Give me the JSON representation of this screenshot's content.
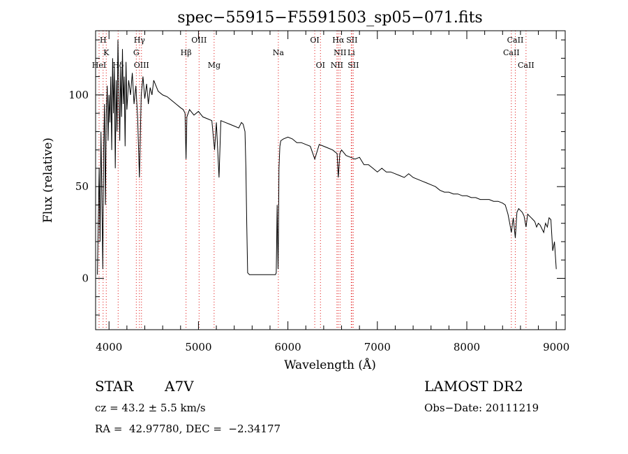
{
  "chart_data": {
    "type": "line",
    "title": "spec−55915−F5591503_sp05−071.fits",
    "xlabel": "Wavelength (Å)",
    "ylabel": "Flux (relative)",
    "xlim": [
      3850,
      9100
    ],
    "ylim": [
      -28,
      135
    ],
    "xticks": [
      4000,
      5000,
      6000,
      7000,
      8000,
      9000
    ],
    "yticks": [
      0,
      50,
      100
    ],
    "grid": false,
    "line_color": "#000000",
    "marker_color": "#e01010",
    "series": [
      {
        "x": [
          3870,
          3880,
          3890,
          3900,
          3910,
          3920,
          3930,
          3940,
          3950,
          3960,
          3970,
          3980,
          3990,
          4000,
          4010,
          4020,
          4030,
          4040,
          4050,
          4060,
          4070,
          4080,
          4090,
          4100,
          4110,
          4120,
          4130,
          4140,
          4150,
          4160,
          4170,
          4180,
          4190,
          4200,
          4220,
          4240,
          4260,
          4280,
          4300,
          4320,
          4340,
          4360,
          4380,
          4400,
          4420,
          4440,
          4460,
          4480,
          4500,
          4550,
          4600,
          4650,
          4700,
          4750,
          4800,
          4830,
          4850,
          4861,
          4870,
          4900,
          4950,
          5000,
          5050,
          5100,
          5150,
          5180,
          5200,
          5230,
          5250,
          5300,
          5350,
          5400,
          5450,
          5480,
          5500,
          5520,
          5530,
          5540,
          5550,
          5570,
          5600,
          5650,
          5700,
          5750,
          5800,
          5840,
          5860,
          5870,
          5880,
          5885,
          5890,
          5895,
          5900,
          5910,
          5920,
          5950,
          6000,
          6050,
          6100,
          6150,
          6200,
          6250,
          6300,
          6350,
          6400,
          6450,
          6500,
          6550,
          6563,
          6580,
          6600,
          6650,
          6700,
          6750,
          6800,
          6850,
          6900,
          6950,
          7000,
          7050,
          7100,
          7150,
          7200,
          7250,
          7300,
          7350,
          7400,
          7450,
          7500,
          7550,
          7600,
          7650,
          7700,
          7750,
          7800,
          7850,
          7900,
          7950,
          8000,
          8050,
          8100,
          8150,
          8200,
          8250,
          8300,
          8350,
          8400,
          8430,
          8460,
          8480,
          8498,
          8520,
          8542,
          8560,
          8580,
          8600,
          8620,
          8640,
          8662,
          8680,
          8700,
          8720,
          8740,
          8760,
          8780,
          8800,
          8820,
          8840,
          8860,
          8880,
          8900,
          8920,
          8940,
          8960,
          8980,
          9000
        ],
        "y": [
          2,
          30,
          60,
          20,
          80,
          45,
          5,
          70,
          95,
          40,
          90,
          105,
          75,
          100,
          85,
          110,
          70,
          120,
          90,
          115,
          60,
          108,
          80,
          130,
          102,
          75,
          115,
          88,
          125,
          95,
          110,
          72,
          118,
          92,
          108,
          100,
          112,
          95,
          105,
          88,
          55,
          100,
          110,
          98,
          106,
          95,
          104,
          100,
          108,
          102,
          100,
          99,
          97,
          95,
          93,
          92,
          90,
          65,
          88,
          92,
          89,
          91,
          88,
          87,
          86,
          70,
          85,
          55,
          86,
          85,
          84,
          83,
          82,
          85,
          84,
          80,
          60,
          30,
          3,
          2,
          2,
          2,
          2,
          2,
          2,
          2,
          2,
          3,
          40,
          20,
          5,
          25,
          60,
          72,
          75,
          76,
          77,
          76,
          74,
          74,
          73,
          72,
          65,
          73,
          72,
          71,
          70,
          68,
          55,
          68,
          70,
          67,
          66,
          65,
          66,
          62,
          62,
          60,
          58,
          60,
          58,
          58,
          57,
          56,
          55,
          57,
          55,
          54,
          53,
          52,
          51,
          50,
          48,
          47,
          47,
          46,
          46,
          45,
          45,
          44,
          44,
          43,
          43,
          43,
          42,
          42,
          41,
          40,
          35,
          30,
          25,
          33,
          22,
          36,
          38,
          37,
          36,
          34,
          28,
          35,
          34,
          33,
          32,
          31,
          28,
          30,
          29,
          27,
          25,
          30,
          28,
          33,
          32,
          15,
          20,
          5
        ]
      }
    ],
    "lines": [
      {
        "label": "H",
        "w": 3934,
        "row": 0
      },
      {
        "label": "K",
        "w": 3969,
        "row": 1
      },
      {
        "label": "HeI",
        "w": 3889,
        "row": 2
      },
      {
        "label": "Hδ",
        "w": 4102,
        "row": 2
      },
      {
        "label": "Hγ",
        "w": 4340,
        "row": 0
      },
      {
        "label": "G",
        "w": 4305,
        "row": 1
      },
      {
        "label": "OIII",
        "w": 4363,
        "row": 2
      },
      {
        "label": "OIII",
        "w": 5007,
        "row": 0
      },
      {
        "label": "Hβ",
        "w": 4861,
        "row": 1
      },
      {
        "label": "Mg",
        "w": 5175,
        "row": 2
      },
      {
        "label": "Na",
        "w": 5893,
        "row": 1
      },
      {
        "label": "OI",
        "w": 6300,
        "row": 0
      },
      {
        "label": "OI",
        "w": 6364,
        "row": 2
      },
      {
        "label": "Hα",
        "w": 6563,
        "row": 0
      },
      {
        "label": "SII",
        "w": 6716,
        "row": 0
      },
      {
        "label": "NII",
        "w": 6583,
        "row": 1
      },
      {
        "label": "Li",
        "w": 6708,
        "row": 1
      },
      {
        "label": "NII",
        "w": 6548,
        "row": 2
      },
      {
        "label": "SII",
        "w": 6731,
        "row": 2
      },
      {
        "label": "CaII",
        "w": 8542,
        "row": 0
      },
      {
        "label": "CaII",
        "w": 8498,
        "row": 1
      },
      {
        "label": "CaII",
        "w": 8662,
        "row": 2
      }
    ]
  },
  "info": {
    "object_type": "STAR",
    "subclass": "A7V",
    "survey": "LAMOST DR2",
    "cz": "cz = 43.2 ± 5.5 km/s",
    "obs_date": "Obs−Date: 20111219",
    "coords": "RA =  42.97780, DEC =  −2.34177"
  }
}
